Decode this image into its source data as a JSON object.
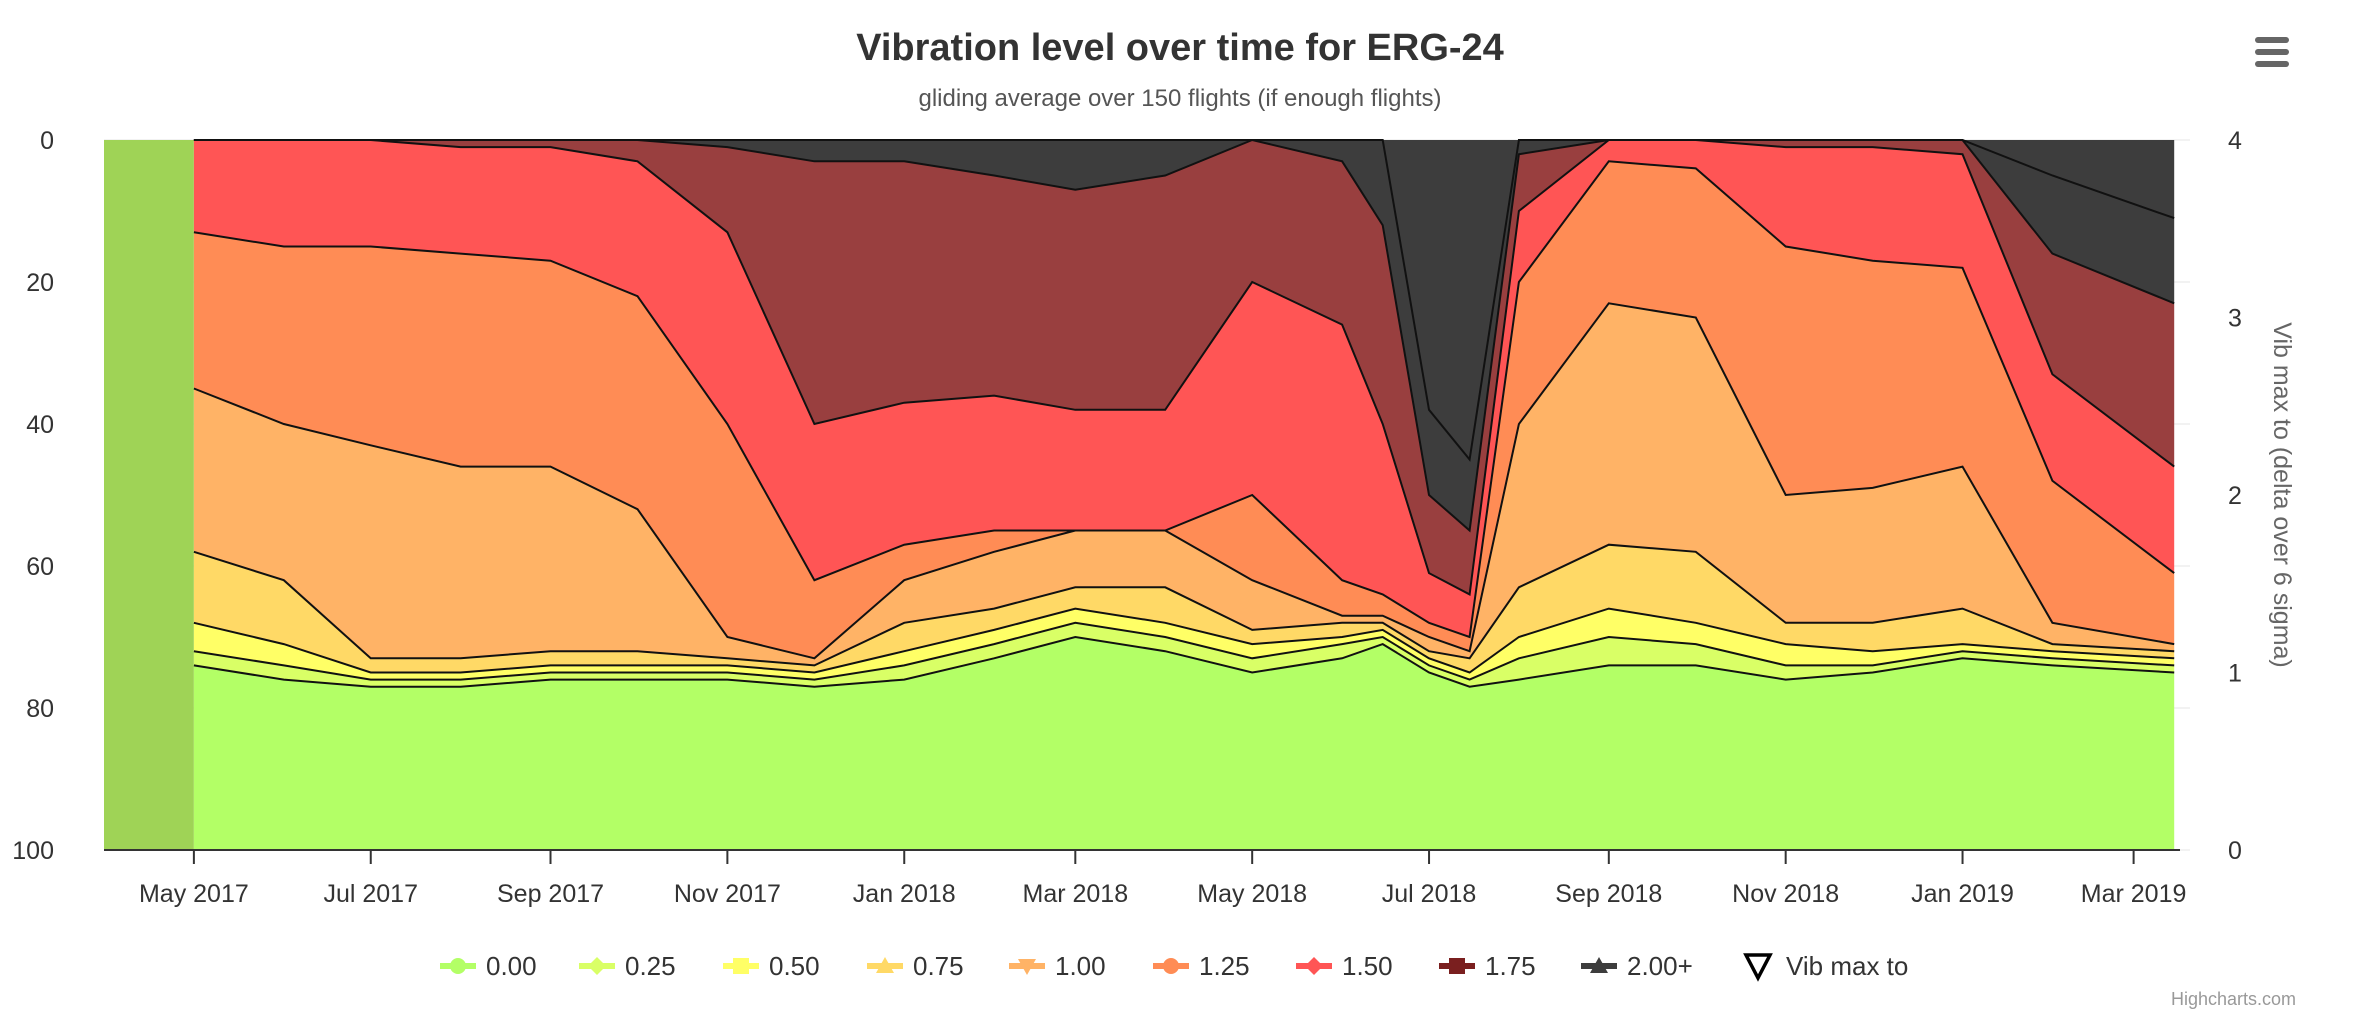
{
  "chart_data": {
    "type": "area",
    "title": "Vibration level over time for ERG-24",
    "subtitle": "gliding average over 150 flights (if enough flights)",
    "y_left": {
      "range": [
        0,
        100
      ],
      "reversed": true,
      "ticks": [
        "0",
        "20",
        "40",
        "60",
        "80",
        "100"
      ]
    },
    "y_right": {
      "title": "Vib max to (delta over 6 sigma)",
      "range": [
        0,
        4
      ],
      "ticks": [
        "0",
        "1",
        "2",
        "3",
        "4"
      ]
    },
    "x_axis": {
      "type": "datetime",
      "range": [
        "2017-03-31",
        "2019-03-17"
      ],
      "ticks": [
        {
          "date": "2017-05-01",
          "label": "May 2017"
        },
        {
          "date": "2017-07-01",
          "label": "Jul 2017"
        },
        {
          "date": "2017-09-01",
          "label": "Sep 2017"
        },
        {
          "date": "2017-11-01",
          "label": "Nov 2017"
        },
        {
          "date": "2018-01-01",
          "label": "Jan 2018"
        },
        {
          "date": "2018-03-01",
          "label": "Mar 2018"
        },
        {
          "date": "2018-05-01",
          "label": "May 2018"
        },
        {
          "date": "2018-07-01",
          "label": "Jul 2018"
        },
        {
          "date": "2018-09-01",
          "label": "Sep 2018"
        },
        {
          "date": "2018-11-01",
          "label": "Nov 2018"
        },
        {
          "date": "2019-01-01",
          "label": "Jan 2019"
        },
        {
          "date": "2019-03-01",
          "label": "Mar 2019"
        }
      ]
    },
    "plot_band": {
      "from": "2017-03-31",
      "to": "2017-05-01"
    },
    "grid": true,
    "legend_position": "bottom-center",
    "stacked_cumulative_boundaries": {
      "x": [
        "2017-05-01",
        "2017-06-01",
        "2017-07-01",
        "2017-08-01",
        "2017-09-01",
        "2017-10-01",
        "2017-11-01",
        "2017-12-01",
        "2018-01-01",
        "2018-02-01",
        "2018-03-01",
        "2018-04-01",
        "2018-05-01",
        "2018-06-01",
        "2018-06-15",
        "2018-07-01",
        "2018-07-15",
        "2018-08-01",
        "2018-09-01",
        "2018-10-01",
        "2018-11-01",
        "2018-12-01",
        "2019-01-01",
        "2019-02-01",
        "2019-03-15"
      ],
      "series": [
        {
          "name": "0.00",
          "color": "#B3FF66",
          "values": [
            74,
            76,
            77,
            77,
            76,
            76,
            76,
            77,
            76,
            73,
            70,
            72,
            75,
            73,
            71,
            75,
            77,
            76,
            74,
            74,
            76,
            75,
            73,
            74,
            75
          ]
        },
        {
          "name": "0.25",
          "color": "#D9FF66",
          "values": [
            72,
            74,
            76,
            76,
            75,
            75,
            75,
            76,
            74,
            71,
            68,
            70,
            73,
            71,
            70,
            74,
            76,
            73,
            70,
            71,
            74,
            74,
            72,
            73,
            74
          ]
        },
        {
          "name": "0.50",
          "color": "#FFFF66",
          "values": [
            68,
            71,
            75,
            75,
            74,
            74,
            74,
            75,
            72,
            69,
            66,
            68,
            71,
            70,
            69,
            73,
            75,
            70,
            66,
            68,
            71,
            72,
            71,
            72,
            73
          ]
        },
        {
          "name": "0.75",
          "color": "#FFD966",
          "values": [
            58,
            62,
            73,
            73,
            72,
            72,
            73,
            74,
            68,
            66,
            63,
            63,
            69,
            68,
            68,
            72,
            73,
            63,
            57,
            58,
            68,
            68,
            66,
            71,
            72
          ]
        },
        {
          "name": "1.00",
          "color": "#FFB366",
          "values": [
            35,
            40,
            43,
            46,
            46,
            52,
            70,
            73,
            62,
            58,
            55,
            55,
            62,
            67,
            67,
            70,
            72,
            40,
            23,
            25,
            50,
            49,
            46,
            68,
            71
          ]
        },
        {
          "name": "1.25",
          "color": "#FF8C55",
          "values": [
            13,
            15,
            15,
            16,
            17,
            22,
            40,
            62,
            57,
            55,
            55,
            55,
            50,
            62,
            64,
            68,
            70,
            20,
            3,
            4,
            15,
            17,
            18,
            48,
            61
          ]
        },
        {
          "name": "1.50",
          "color": "#FF5555",
          "values": [
            0,
            0,
            0,
            1,
            1,
            3,
            13,
            40,
            37,
            36,
            38,
            38,
            20,
            26,
            40,
            61,
            64,
            10,
            0,
            0,
            1,
            1,
            2,
            33,
            46
          ]
        },
        {
          "name": "1.75",
          "color": "#993F3F",
          "values": [
            0,
            0,
            0,
            0,
            0,
            0,
            1,
            3,
            3,
            5,
            7,
            5,
            0,
            3,
            12,
            50,
            55,
            2,
            0,
            0,
            0,
            0,
            0,
            16,
            23
          ]
        },
        {
          "name": "2.00+",
          "color": "#3D3D3D",
          "values": [
            0,
            0,
            0,
            0,
            0,
            0,
            0,
            0,
            0,
            0,
            0,
            0,
            0,
            0,
            0,
            38,
            45,
            0,
            0,
            0,
            0,
            0,
            0,
            5,
            11
          ]
        }
      ]
    },
    "legend": [
      {
        "label": "0.00",
        "color": "#B3FF66",
        "symbol": "circle"
      },
      {
        "label": "0.25",
        "color": "#D9FF66",
        "symbol": "diamond"
      },
      {
        "label": "0.50",
        "color": "#FFFF66",
        "symbol": "square"
      },
      {
        "label": "0.75",
        "color": "#FFD966",
        "symbol": "triangle"
      },
      {
        "label": "1.00",
        "color": "#FFB366",
        "symbol": "triangle-down"
      },
      {
        "label": "1.25",
        "color": "#FF8C55",
        "symbol": "circle"
      },
      {
        "label": "1.50",
        "color": "#FF5555",
        "symbol": "diamond"
      },
      {
        "label": "1.75",
        "color": "#7A1F1F",
        "symbol": "square"
      },
      {
        "label": "2.00+",
        "color": "#3D3D3D",
        "symbol": "triangle"
      },
      {
        "label": "Vib max to",
        "color": "#000000",
        "symbol": "triangle-down-outline"
      }
    ],
    "credits": "Highcharts.com"
  },
  "menu": {
    "icon": "hamburger-menu-icon"
  }
}
